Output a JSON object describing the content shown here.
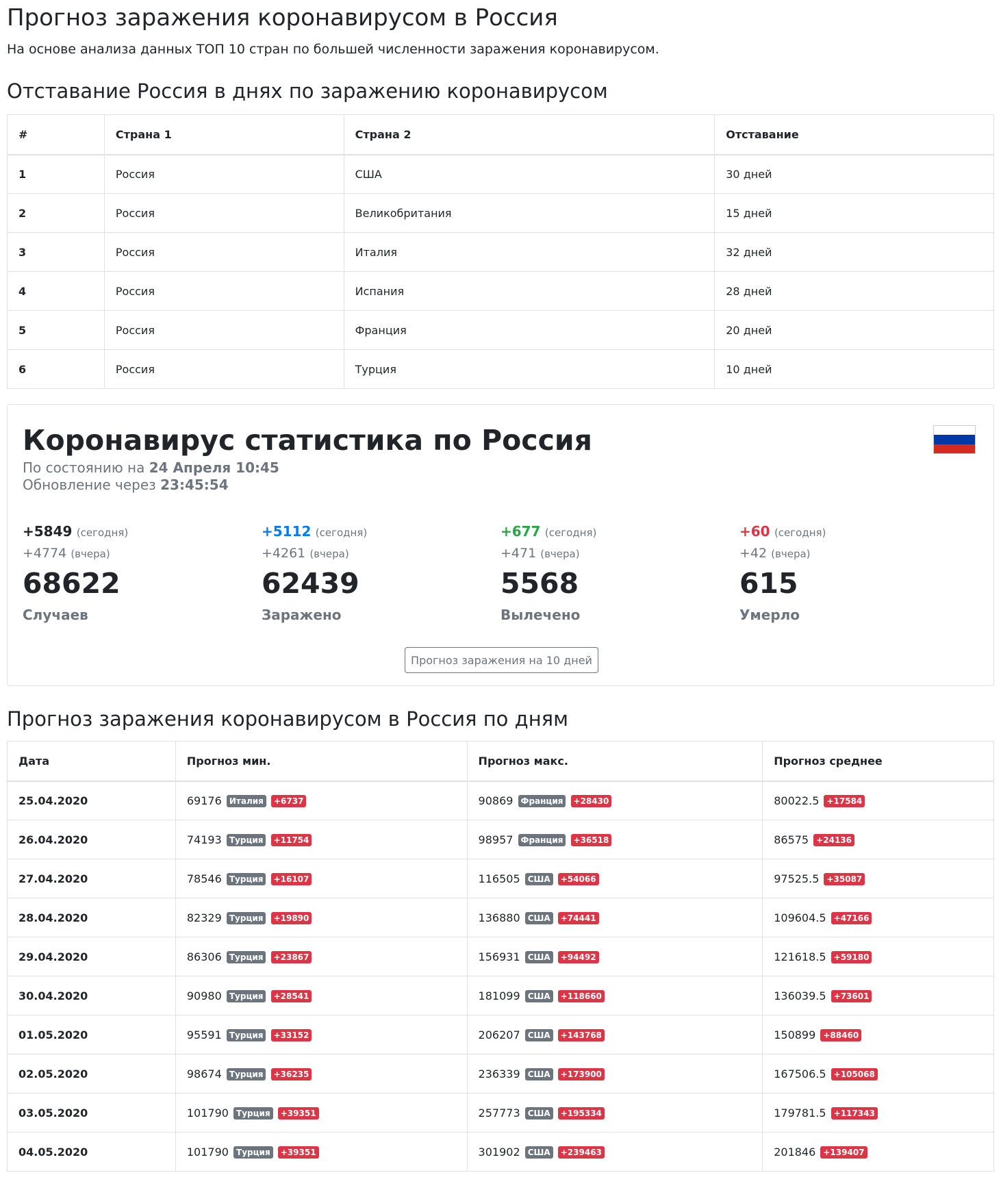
{
  "header": {
    "title": "Прогноз заражения коронавирусом в Россия",
    "subtitle": "На основе анализа данных ТОП 10 стран по большей численности заражения коронавирусом."
  },
  "lag_section": {
    "title": "Отставание Россия в днях по заражению коронавирусом",
    "columns": [
      "#",
      "Страна 1",
      "Страна 2",
      "Отставание"
    ],
    "rows": [
      {
        "num": "1",
        "country1": "Россия",
        "country2": "США",
        "lag": "30 дней"
      },
      {
        "num": "2",
        "country1": "Россия",
        "country2": "Великобритания",
        "lag": "15 дней"
      },
      {
        "num": "3",
        "country1": "Россия",
        "country2": "Италия",
        "lag": "32 дней"
      },
      {
        "num": "4",
        "country1": "Россия",
        "country2": "Испания",
        "lag": "28 дней"
      },
      {
        "num": "5",
        "country1": "Россия",
        "country2": "Франция",
        "lag": "20 дней"
      },
      {
        "num": "6",
        "country1": "Россия",
        "country2": "Турция",
        "lag": "10 дней"
      }
    ]
  },
  "stats_card": {
    "title": "Коронавирус статистика по Россия",
    "as_of_label": "По состоянию на",
    "as_of_value": "24 Апреля 10:45",
    "update_label": "Обновление через",
    "update_value": "23:45:54",
    "flag_colors": [
      "#ffffff",
      "#0039a6",
      "#d52b1e"
    ],
    "stats": [
      {
        "today": "+5849",
        "today_label": "(сегодня)",
        "yesterday": "+4774",
        "yesterday_label": "(вчера)",
        "total": "68622",
        "label": "Случаев",
        "color": "#212529"
      },
      {
        "today": "+5112",
        "today_label": "(сегодня)",
        "yesterday": "+4261",
        "yesterday_label": "(вчера)",
        "total": "62439",
        "label": "Заражено",
        "color": "#007bff"
      },
      {
        "today": "+677",
        "today_label": "(сегодня)",
        "yesterday": "+471",
        "yesterday_label": "(вчера)",
        "total": "5568",
        "label": "Вылечено",
        "color": "#28a745"
      },
      {
        "today": "+60",
        "today_label": "(сегодня)",
        "yesterday": "+42",
        "yesterday_label": "(вчера)",
        "total": "615",
        "label": "Умерло",
        "color": "#dc3545"
      }
    ],
    "button_label": "Прогноз заражения на 10 дней"
  },
  "forecast_section": {
    "title": "Прогноз заражения коронавирусом в Россия по дням",
    "columns": [
      "Дата",
      "Прогноз мин.",
      "Прогноз макс.",
      "Прогноз среднее"
    ],
    "rows": [
      {
        "date": "25.04.2020",
        "min": "69176",
        "min_country": "Италия",
        "min_delta": "+6737",
        "max": "90869",
        "max_country": "Франция",
        "max_delta": "+28430",
        "avg": "80022.5",
        "avg_delta": "+17584"
      },
      {
        "date": "26.04.2020",
        "min": "74193",
        "min_country": "Турция",
        "min_delta": "+11754",
        "max": "98957",
        "max_country": "Франция",
        "max_delta": "+36518",
        "avg": "86575",
        "avg_delta": "+24136"
      },
      {
        "date": "27.04.2020",
        "min": "78546",
        "min_country": "Турция",
        "min_delta": "+16107",
        "max": "116505",
        "max_country": "США",
        "max_delta": "+54066",
        "avg": "97525.5",
        "avg_delta": "+35087"
      },
      {
        "date": "28.04.2020",
        "min": "82329",
        "min_country": "Турция",
        "min_delta": "+19890",
        "max": "136880",
        "max_country": "США",
        "max_delta": "+74441",
        "avg": "109604.5",
        "avg_delta": "+47166"
      },
      {
        "date": "29.04.2020",
        "min": "86306",
        "min_country": "Турция",
        "min_delta": "+23867",
        "max": "156931",
        "max_country": "США",
        "max_delta": "+94492",
        "avg": "121618.5",
        "avg_delta": "+59180"
      },
      {
        "date": "30.04.2020",
        "min": "90980",
        "min_country": "Турция",
        "min_delta": "+28541",
        "max": "181099",
        "max_country": "США",
        "max_delta": "+118660",
        "avg": "136039.5",
        "avg_delta": "+73601"
      },
      {
        "date": "01.05.2020",
        "min": "95591",
        "min_country": "Турция",
        "min_delta": "+33152",
        "max": "206207",
        "max_country": "США",
        "max_delta": "+143768",
        "avg": "150899",
        "avg_delta": "+88460"
      },
      {
        "date": "02.05.2020",
        "min": "98674",
        "min_country": "Турция",
        "min_delta": "+36235",
        "max": "236339",
        "max_country": "США",
        "max_delta": "+173900",
        "avg": "167506.5",
        "avg_delta": "+105068"
      },
      {
        "date": "03.05.2020",
        "min": "101790",
        "min_country": "Турция",
        "min_delta": "+39351",
        "max": "257773",
        "max_country": "США",
        "max_delta": "+195334",
        "avg": "179781.5",
        "avg_delta": "+117343"
      },
      {
        "date": "04.05.2020",
        "min": "101790",
        "min_country": "Турция",
        "min_delta": "+39351",
        "max": "301902",
        "max_country": "США",
        "max_delta": "+239463",
        "avg": "201846",
        "avg_delta": "+139407"
      }
    ]
  }
}
